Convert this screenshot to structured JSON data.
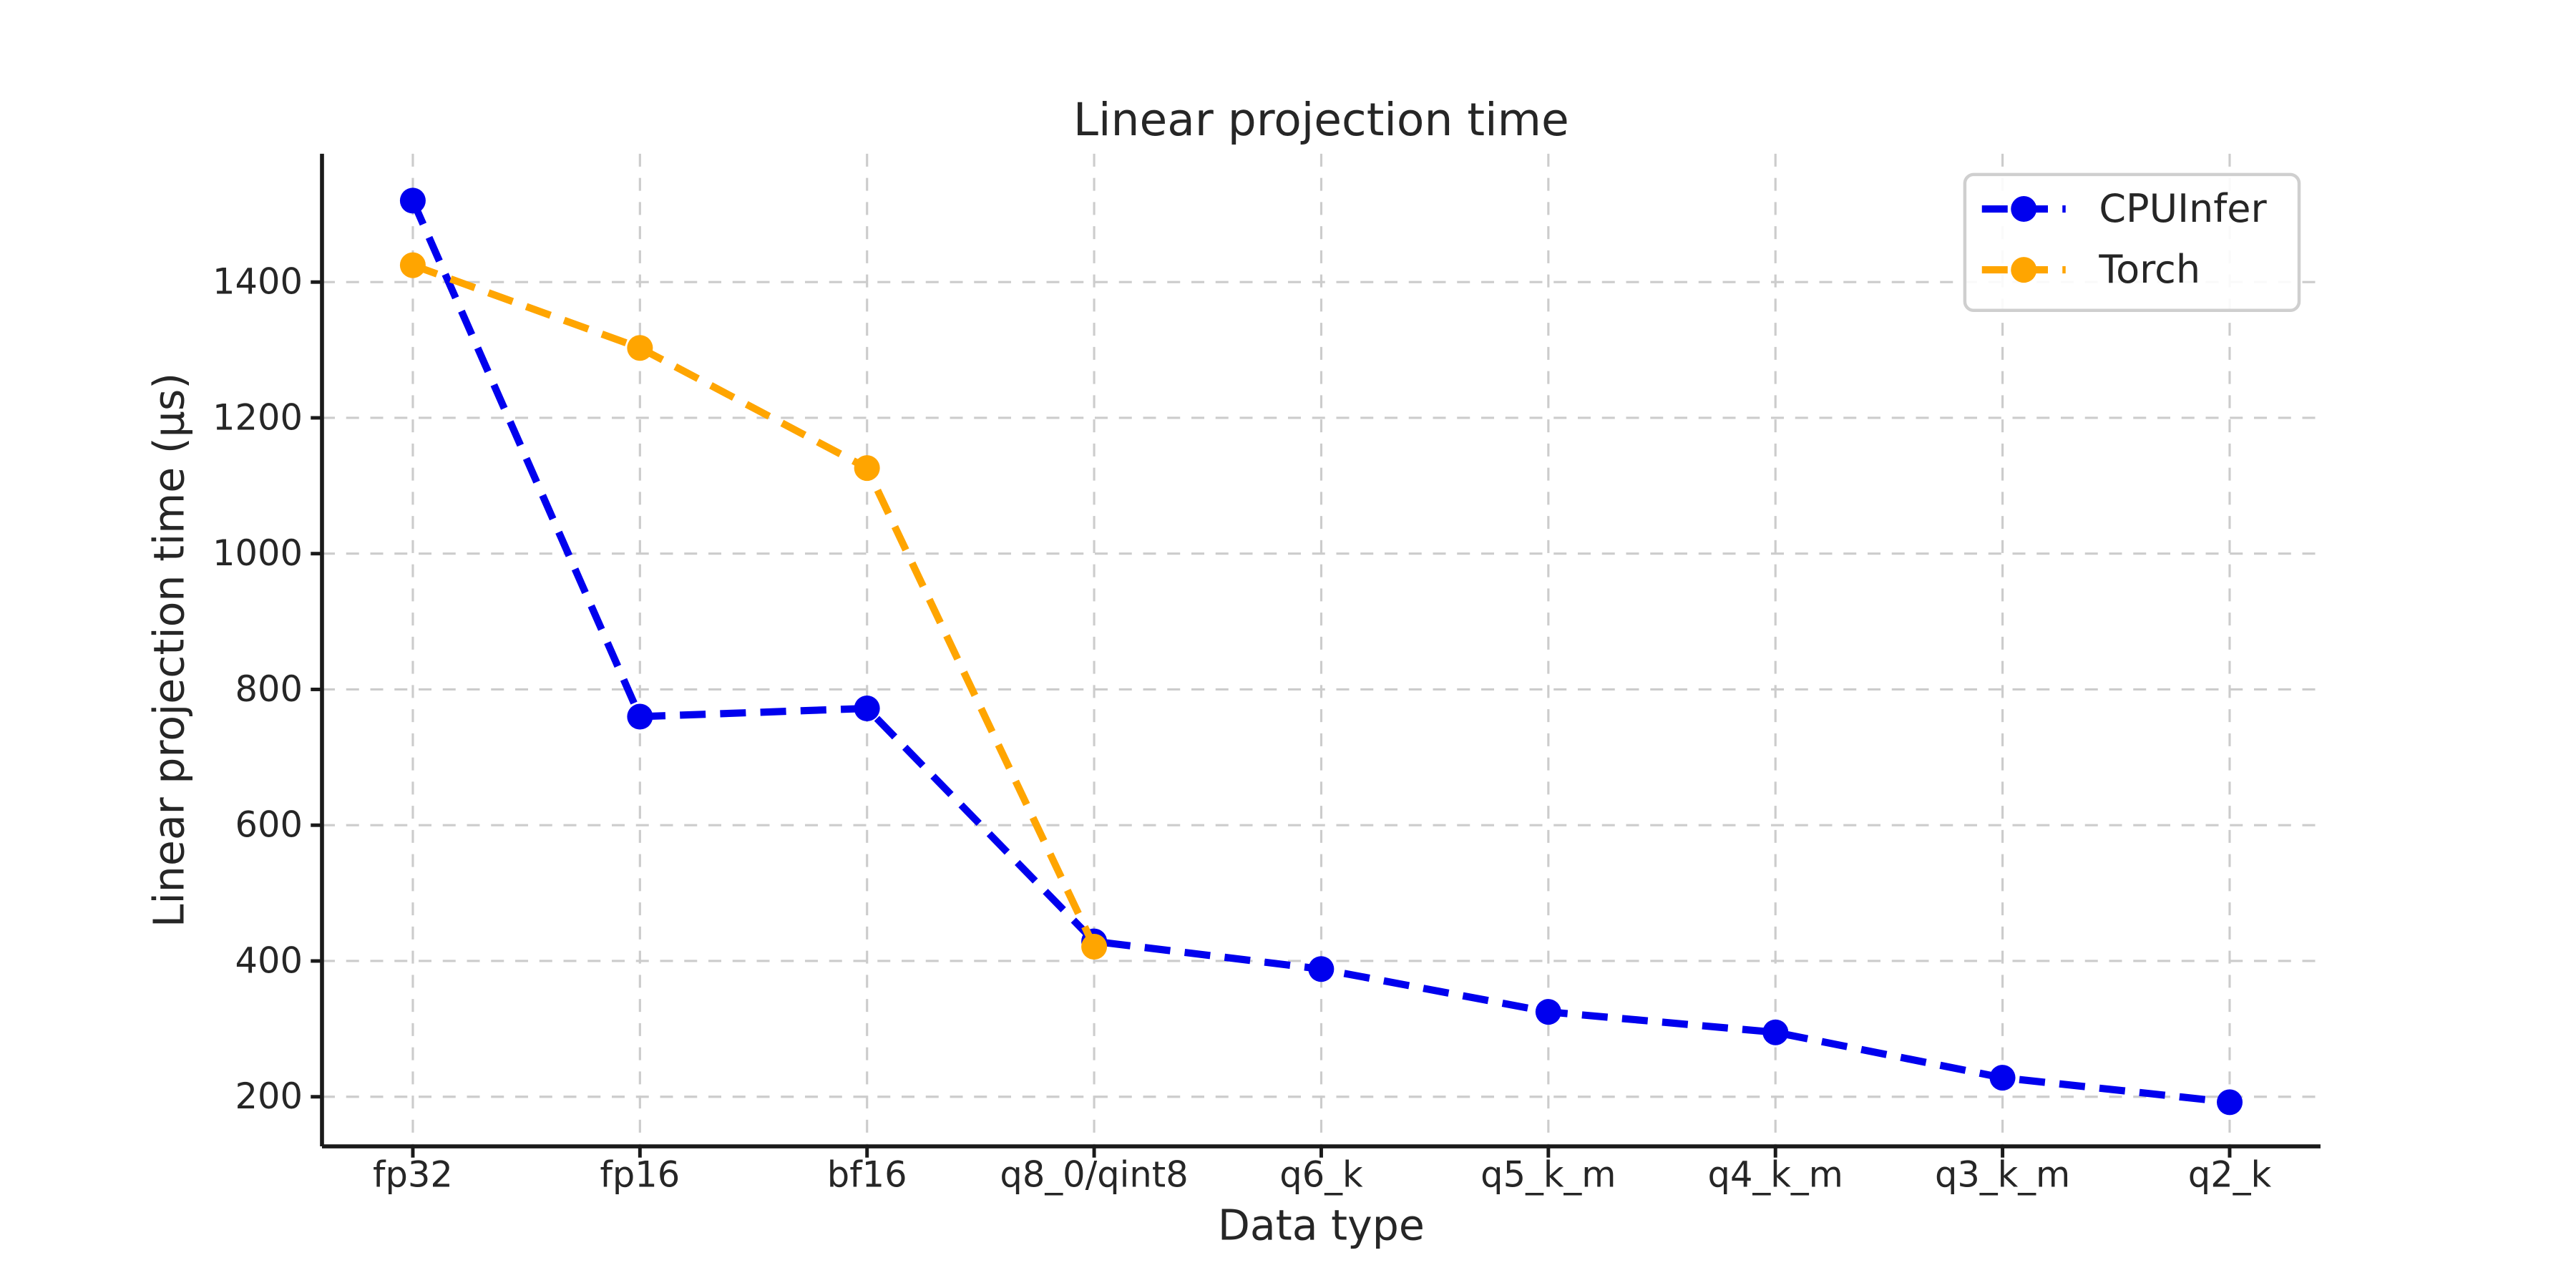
{
  "figure": {
    "background": "#ffffff"
  },
  "chart_data": {
    "type": "line",
    "title": "Linear projection time",
    "xlabel": "Data type",
    "ylabel": "Linear projection time (μs)",
    "categories": [
      "fp32",
      "fp16",
      "bf16",
      "q8_0/qint8",
      "q6_k",
      "q5_k_m",
      "q4_k_m",
      "q3_k_m",
      "q2_k"
    ],
    "series": [
      {
        "name": "CPUInfer",
        "color": "#0000ee",
        "linestyle": "dashed",
        "marker": "circle",
        "values": [
          1520,
          760,
          772,
          429,
          388,
          325,
          295,
          228,
          192
        ]
      },
      {
        "name": "Torch",
        "color": "#ffa500",
        "linestyle": "dashed",
        "marker": "circle",
        "values": [
          1425,
          1303,
          1126,
          421
        ]
      }
    ],
    "ylim": [
      127,
      1589
    ],
    "yticks": [
      200,
      400,
      600,
      800,
      1000,
      1200,
      1400
    ],
    "grid": true,
    "legend": {
      "position": "upper right",
      "entries": [
        "CPUInfer",
        "Torch"
      ]
    },
    "colors": {
      "axis": "#1a1a1a",
      "grid": "#cccccc",
      "text": "#262626"
    }
  }
}
